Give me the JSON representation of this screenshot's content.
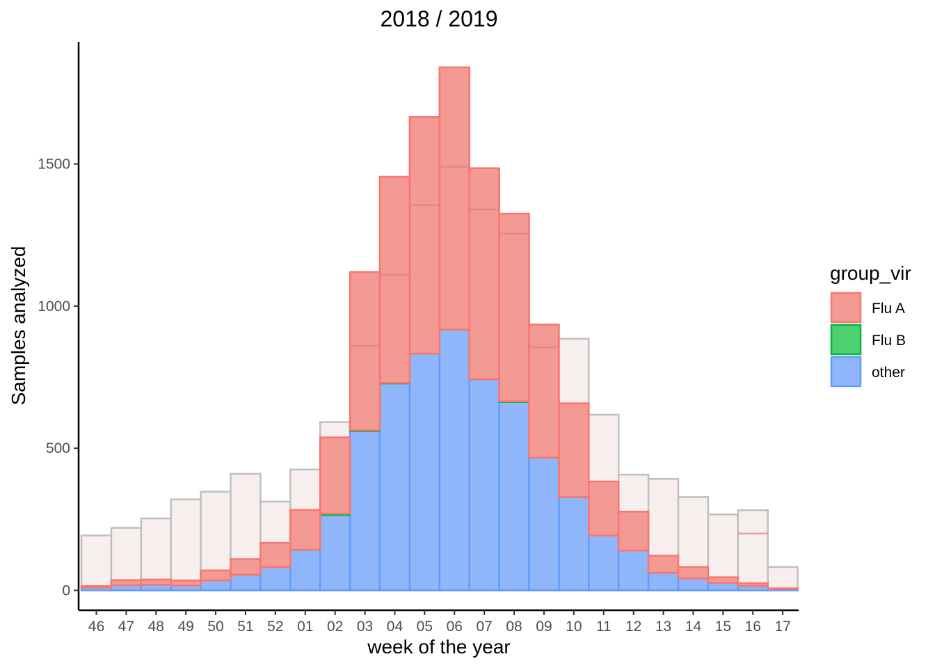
{
  "chart_data": {
    "type": "bar",
    "title": "2018 / 2019",
    "xlabel": "week of the year",
    "ylabel": "Samples analyzed",
    "ylim": [
      -70,
      1930
    ],
    "yticks": [
      0,
      500,
      1000,
      1500
    ],
    "grid": false,
    "legend_position": "right",
    "legend_title": "group_vir",
    "categories": [
      "46",
      "47",
      "48",
      "49",
      "50",
      "51",
      "52",
      "01",
      "02",
      "03",
      "04",
      "05",
      "06",
      "07",
      "08",
      "09",
      "10",
      "11",
      "12",
      "13",
      "14",
      "15",
      "16",
      "17"
    ],
    "total_samples": [
      193,
      220,
      253,
      320,
      347,
      410,
      312,
      425,
      592,
      1120,
      1455,
      1665,
      1840,
      1485,
      1325,
      935,
      885,
      618,
      407,
      392,
      328,
      267,
      282,
      82
    ],
    "series": [
      {
        "name": "other",
        "color": "#619CFF",
        "fill": "#8fb6fb",
        "values": [
          10,
          18,
          20,
          17,
          35,
          55,
          82,
          143,
          265,
          560,
          728,
          833,
          917,
          743,
          663,
          467,
          328,
          193,
          140,
          62,
          42,
          26,
          15,
          5
        ]
      },
      {
        "name": "Flu B",
        "color": "#00BA38",
        "fill": "#4cd072",
        "values": [
          0,
          0,
          0,
          0,
          0,
          0,
          0,
          0,
          5,
          3,
          2,
          0,
          0,
          0,
          2,
          0,
          0,
          0,
          0,
          0,
          0,
          0,
          0,
          0
        ]
      },
      {
        "name": "Flu A",
        "color": "#F8766D",
        "fill": "#f39a94",
        "values": [
          5,
          18,
          18,
          18,
          35,
          55,
          85,
          140,
          268,
          557,
          725,
          832,
          923,
          742,
          660,
          468,
          330,
          190,
          137,
          60,
          40,
          20,
          10,
          2
        ]
      }
    ],
    "flu_a_lines": [
      {
        "category": "03",
        "value": 860
      },
      {
        "category": "04",
        "value": 1110
      },
      {
        "category": "05",
        "value": 1355
      },
      {
        "category": "06",
        "value": 1490
      },
      {
        "category": "07",
        "value": 1340
      },
      {
        "category": "08",
        "value": 1255
      },
      {
        "category": "09",
        "value": 855
      },
      {
        "category": "16",
        "value": 200
      }
    ]
  }
}
